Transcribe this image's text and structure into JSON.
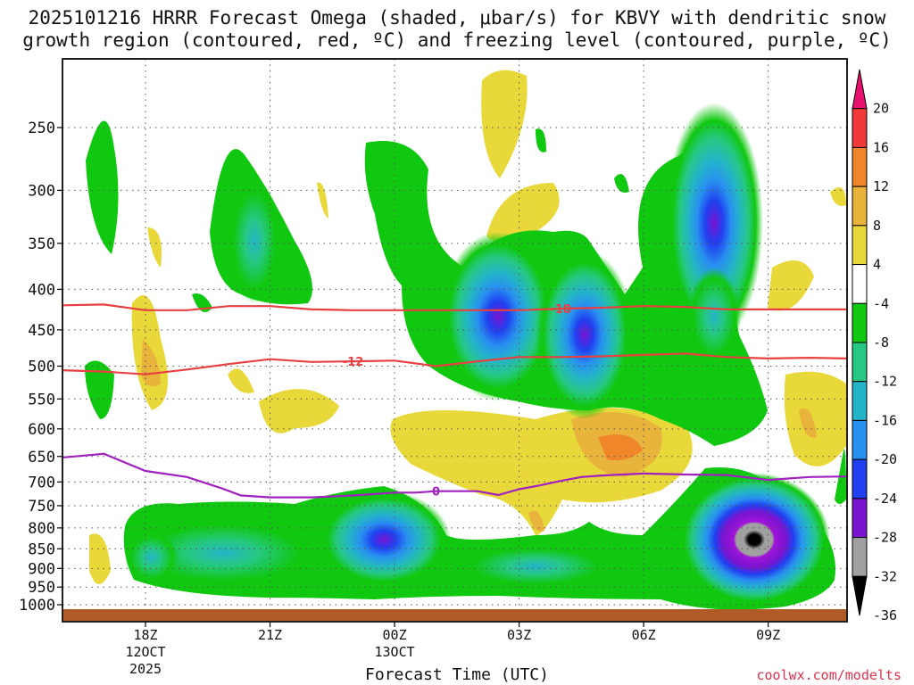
{
  "title": "2025101216 HRRR Forecast Omega (shaded, μbar/s) for KBVY with dendritic snow growth region (contoured, red, ºC) and freezing level (contoured, purple, ºC)",
  "xlabel": "Forecast Time (UTC)",
  "credit": "coolwx.com/modelts",
  "chart_data": {
    "type": "heatmap",
    "title": "2025101216 HRRR Forecast Omega (shaded, μbar/s) for KBVY with dendritic snow growth region (contoured, red, ºC) and freezing level (contoured, purple, ºC)",
    "xlabel": "Forecast Time (UTC)",
    "ylabel": "",
    "y_axis": {
      "scale": "pressure",
      "ticks": [
        250,
        300,
        350,
        400,
        450,
        500,
        550,
        600,
        650,
        700,
        750,
        800,
        850,
        900,
        950,
        1000
      ]
    },
    "x_axis": {
      "ticks": [
        {
          "hour": 18,
          "label": "18Z",
          "sub1": "12OCT",
          "sub2": "2025"
        },
        {
          "hour": 21,
          "label": "21Z",
          "sub1": "",
          "sub2": ""
        },
        {
          "hour": 24,
          "label": "00Z",
          "sub1": "13OCT",
          "sub2": ""
        },
        {
          "hour": 27,
          "label": "03Z",
          "sub1": "",
          "sub2": ""
        },
        {
          "hour": 30,
          "label": "06Z",
          "sub1": "",
          "sub2": ""
        },
        {
          "hour": 33,
          "label": "09Z",
          "sub1": "",
          "sub2": ""
        }
      ],
      "range_hours": [
        16,
        34.9
      ]
    },
    "colorbar": {
      "levels": [
        20,
        16,
        12,
        8,
        4,
        -4,
        -8,
        -12,
        -16,
        -20,
        -24,
        -28,
        -32,
        -36
      ],
      "colors": [
        "#e8106e",
        "#f03a3a",
        "#f0862a",
        "#e8b43c",
        "#e8d83a",
        "#ffffff",
        "#10c810",
        "#26c882",
        "#24b4c8",
        "#2890f0",
        "#2040f0",
        "#7814d0",
        "#a0a0a0",
        "#000000"
      ]
    },
    "features": [
      {
        "name": "omega-ascent-low-west",
        "hour": [
          17.5,
          22.2
        ],
        "p": [
          770,
          960
        ],
        "min": -16
      },
      {
        "name": "omega-ascent-low-2230",
        "hour": [
          22,
          24.8
        ],
        "p": [
          750,
          920
        ],
        "min": -28
      },
      {
        "name": "omega-ascent-low-0730",
        "hour": [
          29.9,
          34.2
        ],
        "p": [
          690,
          980
        ],
        "min": -36
      },
      {
        "name": "omega-ascent-upper-02z",
        "hour": [
          25.1,
          27.9
        ],
        "p": [
          240,
          560
        ],
        "min": -24
      },
      {
        "name": "omega-ascent-upper-04z",
        "hour": [
          26.8,
          29.2
        ],
        "p": [
          330,
          560
        ],
        "min": -24
      },
      {
        "name": "omega-ascent-upper-07z",
        "hour": [
          29.6,
          31.8
        ],
        "p": [
          250,
          590
        ],
        "min": -28
      },
      {
        "name": "omega-ascent-1930",
        "hour": [
          19.4,
          21.6
        ],
        "p": [
          250,
          410
        ],
        "min": -12
      },
      {
        "name": "omega-descent-0430",
        "hour": [
          24,
          31
        ],
        "p": [
          560,
          780
        ],
        "max": 12
      }
    ],
    "contours": [
      {
        "name": "-18",
        "color": "#e84040",
        "label_at_hour": 28.0,
        "points": [
          [
            16,
            419
          ],
          [
            17,
            418
          ],
          [
            18,
            425
          ],
          [
            19,
            425
          ],
          [
            20,
            420
          ],
          [
            21,
            420
          ],
          [
            22,
            424
          ],
          [
            23,
            425
          ],
          [
            24,
            425
          ],
          [
            25,
            425
          ],
          [
            26,
            425
          ],
          [
            27,
            425
          ],
          [
            28,
            423
          ],
          [
            29,
            422
          ],
          [
            30,
            420
          ],
          [
            31,
            421
          ],
          [
            32,
            424
          ],
          [
            33,
            424
          ],
          [
            34,
            424
          ],
          [
            34.9,
            424
          ]
        ]
      },
      {
        "name": "-12",
        "color": "#e84040",
        "label_at_hour": 23.0,
        "points": [
          [
            16,
            506
          ],
          [
            17,
            508
          ],
          [
            18,
            512
          ],
          [
            19,
            505
          ],
          [
            20,
            497
          ],
          [
            21,
            490
          ],
          [
            22,
            494
          ],
          [
            23,
            493
          ],
          [
            24,
            492
          ],
          [
            25,
            500
          ],
          [
            26,
            493
          ],
          [
            27,
            487
          ],
          [
            28,
            487
          ],
          [
            29,
            486
          ],
          [
            30,
            484
          ],
          [
            31,
            482
          ],
          [
            32,
            487
          ],
          [
            33,
            489
          ],
          [
            34,
            488
          ],
          [
            34.9,
            489
          ]
        ]
      },
      {
        "name": "0",
        "color": "#a020c0",
        "label_at_hour": 25.0,
        "points": [
          [
            16,
            652
          ],
          [
            17,
            645
          ],
          [
            18,
            678
          ],
          [
            19,
            690
          ],
          [
            19.8,
            712
          ],
          [
            20.3,
            728
          ],
          [
            21,
            732
          ],
          [
            22,
            732
          ],
          [
            23,
            728
          ],
          [
            24,
            722
          ],
          [
            24.5,
            722
          ],
          [
            25,
            719
          ],
          [
            26,
            719
          ],
          [
            26.5,
            727
          ],
          [
            27,
            715
          ],
          [
            27.5,
            707
          ],
          [
            28,
            698
          ],
          [
            28.5,
            690
          ],
          [
            29,
            687
          ],
          [
            30,
            683
          ],
          [
            31,
            685
          ],
          [
            32,
            686
          ],
          [
            33,
            696
          ],
          [
            34,
            690
          ],
          [
            34.9,
            689
          ]
        ]
      }
    ]
  }
}
